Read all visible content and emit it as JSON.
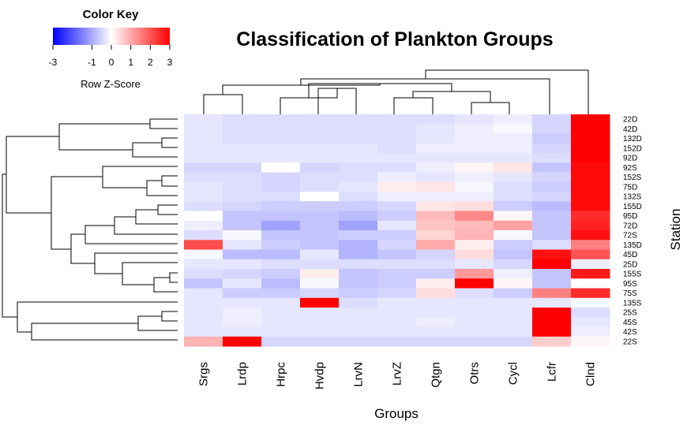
{
  "chart_data": {
    "type": "heatmap",
    "title": "Classification of Plankton Groups",
    "xlabel": "Groups",
    "ylabel": "Station",
    "color_key": {
      "title": "Color Key",
      "label": "Row Z-Score",
      "ticks": [
        "-3",
        "-1",
        "0",
        "1",
        "2",
        "3"
      ],
      "range": [
        -3,
        3
      ],
      "colors": {
        "low": "#0000ff",
        "mid": "#ffffff",
        "high": "#ff0000"
      }
    },
    "columns": [
      "Srgs",
      "Lrdp",
      "Hrpc",
      "Hvdp",
      "LrvN",
      "LrvZ",
      "Qtgn",
      "Otrs",
      "Cycl",
      "Lcfr",
      "Clnd"
    ],
    "rows": [
      "22D",
      "42D",
      "132D",
      "152D",
      "92D",
      "92S",
      "152S",
      "75D",
      "132S",
      "155D",
      "95D",
      "72D",
      "72S",
      "135D",
      "45D",
      "25D",
      "155S",
      "95S",
      "75S",
      "135S",
      "25S",
      "45S",
      "42S",
      "22S"
    ],
    "values": [
      [
        -0.3,
        -0.4,
        -0.4,
        -0.4,
        -0.4,
        -0.4,
        -0.4,
        -0.3,
        -0.2,
        -0.5,
        3.0
      ],
      [
        -0.3,
        -0.4,
        -0.4,
        -0.4,
        -0.4,
        -0.4,
        -0.3,
        -0.2,
        -0.1,
        -0.5,
        3.0
      ],
      [
        -0.3,
        -0.4,
        -0.4,
        -0.4,
        -0.4,
        -0.4,
        -0.3,
        -0.2,
        -0.2,
        -0.6,
        3.0
      ],
      [
        -0.3,
        -0.3,
        -0.3,
        -0.3,
        -0.3,
        -0.4,
        -0.2,
        -0.2,
        -0.2,
        -0.5,
        3.0
      ],
      [
        -0.3,
        -0.3,
        -0.3,
        -0.3,
        -0.3,
        -0.3,
        -0.3,
        -0.3,
        -0.3,
        -0.4,
        3.0
      ],
      [
        -0.5,
        -0.5,
        0.0,
        -0.5,
        -0.4,
        -0.4,
        -0.2,
        0.1,
        0.3,
        -0.7,
        2.9
      ],
      [
        -0.4,
        -0.4,
        -0.5,
        -0.4,
        -0.4,
        -0.2,
        -0.3,
        -0.2,
        -0.3,
        -0.5,
        2.9
      ],
      [
        -0.3,
        -0.4,
        -0.5,
        -0.4,
        -0.3,
        0.2,
        0.3,
        -0.1,
        -0.4,
        -0.6,
        2.9
      ],
      [
        -0.3,
        -0.4,
        -0.4,
        0.0,
        -0.4,
        -0.2,
        -0.2,
        -0.2,
        -0.4,
        -0.5,
        2.9
      ],
      [
        -0.4,
        -0.5,
        -0.6,
        -0.6,
        -0.6,
        -0.5,
        0.3,
        0.4,
        -0.6,
        -0.8,
        2.9
      ],
      [
        0.0,
        -0.7,
        -0.7,
        -0.7,
        -0.8,
        -0.6,
        0.8,
        1.4,
        0.1,
        -0.7,
        2.5
      ],
      [
        -0.2,
        -0.7,
        -1.1,
        -0.7,
        -1.1,
        -0.3,
        0.7,
        0.8,
        1.1,
        -0.7,
        2.6
      ],
      [
        -0.4,
        -0.1,
        -0.7,
        -0.7,
        -0.6,
        -0.6,
        0.5,
        0.9,
        -0.1,
        -0.7,
        2.8
      ],
      [
        2.1,
        -0.3,
        -0.6,
        -0.7,
        -0.9,
        -0.5,
        1.0,
        0.2,
        -0.6,
        -0.4,
        1.5
      ],
      [
        -0.1,
        -0.8,
        -0.8,
        -0.3,
        -0.9,
        -0.7,
        -0.5,
        0.4,
        -0.7,
        2.8,
        2.0
      ],
      [
        -0.3,
        -0.3,
        -0.4,
        -0.4,
        -0.4,
        -0.4,
        -0.4,
        -0.3,
        -0.5,
        3.0,
        -0.2
      ],
      [
        -0.4,
        -0.5,
        -0.6,
        0.2,
        -0.7,
        -0.6,
        -0.6,
        1.2,
        -0.2,
        -0.7,
        2.7
      ],
      [
        -0.7,
        -0.3,
        -0.8,
        -0.1,
        -0.7,
        -0.6,
        0.2,
        3.0,
        0.1,
        -0.7,
        0.0
      ],
      [
        -0.3,
        -0.6,
        -0.6,
        -0.5,
        -0.6,
        -0.5,
        0.4,
        -0.4,
        -0.6,
        1.5,
        2.5
      ],
      [
        -0.3,
        -0.3,
        -0.3,
        3.0,
        -0.4,
        -0.3,
        -0.3,
        -0.3,
        -0.3,
        -0.3,
        -0.1
      ],
      [
        -0.3,
        -0.2,
        -0.3,
        -0.3,
        -0.3,
        -0.3,
        -0.3,
        -0.3,
        -0.3,
        3.0,
        -0.4
      ],
      [
        -0.3,
        -0.2,
        -0.3,
        -0.3,
        -0.3,
        -0.3,
        -0.2,
        -0.3,
        -0.3,
        3.0,
        -0.3
      ],
      [
        -0.3,
        -0.3,
        -0.3,
        -0.3,
        -0.3,
        -0.3,
        -0.3,
        -0.3,
        -0.3,
        3.0,
        -0.2
      ],
      [
        0.9,
        3.0,
        -0.5,
        -0.5,
        -0.5,
        -0.5,
        -0.5,
        -0.5,
        -0.5,
        0.6,
        0.1
      ]
    ]
  }
}
